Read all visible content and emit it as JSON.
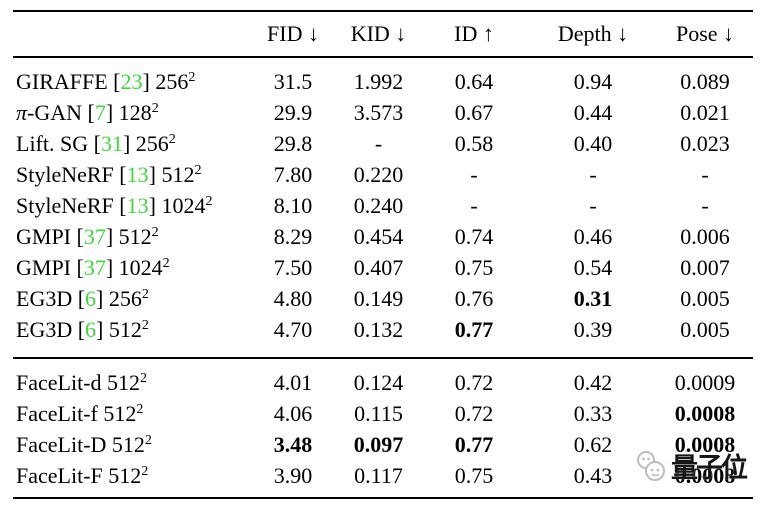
{
  "page": {
    "background": "#ffffff",
    "text_color": "#000000",
    "cite_color": "#3fd63f",
    "rule_color": "#000000"
  },
  "table": {
    "columns": [
      {
        "label": ""
      },
      {
        "label": "FID ↓"
      },
      {
        "label": "KID ↓"
      },
      {
        "label": "ID ↑"
      },
      {
        "label": "Depth ↓"
      },
      {
        "label": "Pose ↓"
      }
    ],
    "sections": [
      {
        "name": "baselines",
        "rows": [
          {
            "id": "giraffe-256",
            "label": [
              {
                "t": "GIRAFFE ["
              },
              {
                "t": "23",
                "green": true
              },
              {
                "t": "] 256"
              },
              {
                "t": "2",
                "sup": true
              }
            ],
            "cells": [
              {
                "t": "31.5"
              },
              {
                "t": "1.992"
              },
              {
                "t": "0.64"
              },
              {
                "t": "0.94"
              },
              {
                "t": "0.089"
              }
            ]
          },
          {
            "id": "pi-gan-128",
            "label": [
              {
                "t": "π",
                "italic": true
              },
              {
                "t": "-GAN ["
              },
              {
                "t": "7",
                "green": true
              },
              {
                "t": "] 128"
              },
              {
                "t": "2",
                "sup": true
              }
            ],
            "cells": [
              {
                "t": "29.9"
              },
              {
                "t": "3.573"
              },
              {
                "t": "0.67"
              },
              {
                "t": "0.44"
              },
              {
                "t": "0.021"
              }
            ]
          },
          {
            "id": "lift-sg-256",
            "label": [
              {
                "t": "Lift. SG ["
              },
              {
                "t": "31",
                "green": true
              },
              {
                "t": "] 256"
              },
              {
                "t": "2",
                "sup": true
              }
            ],
            "cells": [
              {
                "t": "29.8"
              },
              {
                "t": "-"
              },
              {
                "t": "0.58"
              },
              {
                "t": "0.40"
              },
              {
                "t": "0.023"
              }
            ]
          },
          {
            "id": "stylenerf-512",
            "label": [
              {
                "t": "StyleNeRF ["
              },
              {
                "t": "13",
                "green": true
              },
              {
                "t": "] 512"
              },
              {
                "t": "2",
                "sup": true
              }
            ],
            "cells": [
              {
                "t": "7.80"
              },
              {
                "t": "0.220"
              },
              {
                "t": "-"
              },
              {
                "t": "-"
              },
              {
                "t": "-"
              }
            ]
          },
          {
            "id": "stylenerf-1024",
            "label": [
              {
                "t": "StyleNeRF ["
              },
              {
                "t": "13",
                "green": true
              },
              {
                "t": "] 1024"
              },
              {
                "t": "2",
                "sup": true
              }
            ],
            "cells": [
              {
                "t": "8.10"
              },
              {
                "t": "0.240"
              },
              {
                "t": "-"
              },
              {
                "t": "-"
              },
              {
                "t": "-"
              }
            ]
          },
          {
            "id": "gmpi-512",
            "label": [
              {
                "t": "GMPI ["
              },
              {
                "t": "37",
                "green": true
              },
              {
                "t": "] 512"
              },
              {
                "t": "2",
                "sup": true
              }
            ],
            "cells": [
              {
                "t": "8.29"
              },
              {
                "t": "0.454"
              },
              {
                "t": "0.74"
              },
              {
                "t": "0.46"
              },
              {
                "t": "0.006"
              }
            ]
          },
          {
            "id": "gmpi-1024",
            "label": [
              {
                "t": "GMPI ["
              },
              {
                "t": "37",
                "green": true
              },
              {
                "t": "] 1024"
              },
              {
                "t": "2",
                "sup": true
              }
            ],
            "cells": [
              {
                "t": "7.50"
              },
              {
                "t": "0.407"
              },
              {
                "t": "0.75"
              },
              {
                "t": "0.54"
              },
              {
                "t": "0.007"
              }
            ]
          },
          {
            "id": "eg3d-256",
            "label": [
              {
                "t": "EG3D ["
              },
              {
                "t": "6",
                "green": true
              },
              {
                "t": "] 256"
              },
              {
                "t": "2",
                "sup": true
              }
            ],
            "cells": [
              {
                "t": "4.80"
              },
              {
                "t": "0.149"
              },
              {
                "t": "0.76"
              },
              {
                "t": "0.31",
                "bold": true
              },
              {
                "t": "0.005"
              }
            ]
          },
          {
            "id": "eg3d-512",
            "label": [
              {
                "t": "EG3D ["
              },
              {
                "t": "6",
                "green": true
              },
              {
                "t": "] 512"
              },
              {
                "t": "2",
                "sup": true
              }
            ],
            "cells": [
              {
                "t": "4.70"
              },
              {
                "t": "0.132"
              },
              {
                "t": "0.77",
                "bold": true
              },
              {
                "t": "0.39"
              },
              {
                "t": "0.005"
              }
            ]
          }
        ]
      },
      {
        "name": "facelit",
        "rows": [
          {
            "id": "facelit-d-512",
            "label": [
              {
                "t": "FaceLit-d 512"
              },
              {
                "t": "2",
                "sup": true
              }
            ],
            "cells": [
              {
                "t": "4.01"
              },
              {
                "t": "0.124"
              },
              {
                "t": "0.72"
              },
              {
                "t": "0.42"
              },
              {
                "t": "0.0009"
              }
            ]
          },
          {
            "id": "facelit-f-512",
            "label": [
              {
                "t": "FaceLit-f 512"
              },
              {
                "t": "2",
                "sup": true
              }
            ],
            "cells": [
              {
                "t": "4.06"
              },
              {
                "t": "0.115"
              },
              {
                "t": "0.72"
              },
              {
                "t": "0.33"
              },
              {
                "t": "0.0008",
                "bold": true
              }
            ]
          },
          {
            "id": "facelit-D-512",
            "label": [
              {
                "t": "FaceLit-D 512"
              },
              {
                "t": "2",
                "sup": true
              }
            ],
            "cells": [
              {
                "t": "3.48",
                "bold": true
              },
              {
                "t": "0.097",
                "bold": true
              },
              {
                "t": "0.77",
                "bold": true
              },
              {
                "t": "0.62"
              },
              {
                "t": "0.0008",
                "bold": true
              }
            ]
          },
          {
            "id": "facelit-F-512",
            "label": [
              {
                "t": "FaceLit-F 512"
              },
              {
                "t": "2",
                "sup": true
              }
            ],
            "cells": [
              {
                "t": "3.90"
              },
              {
                "t": "0.117"
              },
              {
                "t": "0.75"
              },
              {
                "t": "0.43"
              },
              {
                "t": "0.0008",
                "bold": true,
                "watermarked": true
              }
            ]
          }
        ]
      }
    ]
  },
  "watermark": {
    "text": "量子位",
    "mascot": "qbitai-mascot-icon",
    "text_color": "#161616",
    "mascot_color": "#bdbdbd"
  }
}
